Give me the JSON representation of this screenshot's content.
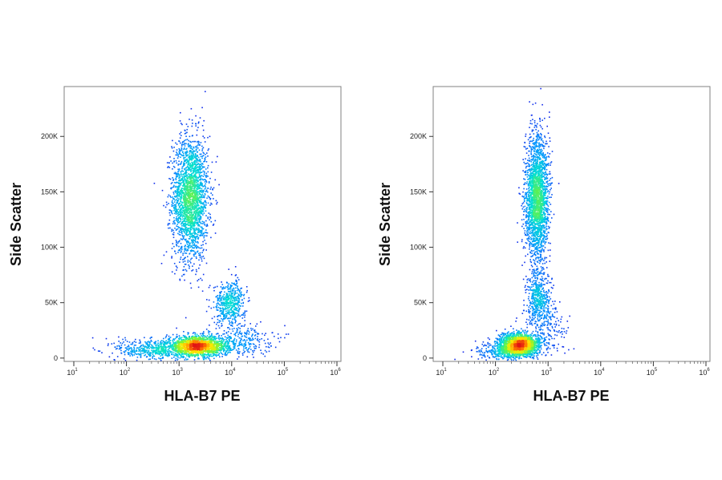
{
  "chart_data": [
    {
      "type": "scatter",
      "style": "density dot plot (pseudocolor)",
      "xlabel": "HLA-B7 PE",
      "ylabel": "Side Scatter",
      "x_scale": "log",
      "xlim": [
        10,
        1000000
      ],
      "ylim": [
        -3000,
        245000
      ],
      "x_ticks": [
        {
          "base": "10",
          "exp": "1"
        },
        {
          "base": "10",
          "exp": "2"
        },
        {
          "base": "10",
          "exp": "3"
        },
        {
          "base": "10",
          "exp": "4"
        },
        {
          "base": "10",
          "exp": "5"
        },
        {
          "base": "10",
          "exp": "6"
        }
      ],
      "y_ticks": [
        {
          "value": 0,
          "label": "0"
        },
        {
          "value": 50000,
          "label": "50K"
        },
        {
          "value": 100000,
          "label": "100K"
        },
        {
          "value": 150000,
          "label": "150K"
        },
        {
          "value": 200000,
          "label": "200K"
        }
      ],
      "populations": [
        {
          "x_center": 1600,
          "y_center": 145000,
          "x_spread_decades": 0.17,
          "y_spread": 28000,
          "count": 2300
        },
        {
          "x_center": 2200,
          "y_center": 11000,
          "x_spread_decades": 0.3,
          "y_spread": 4500,
          "count": 1800
        },
        {
          "x_center": 9000,
          "y_center": 50000,
          "x_spread_decades": 0.15,
          "y_spread": 10000,
          "count": 520
        },
        {
          "x_center": 300,
          "y_center": 8000,
          "x_spread_decades": 0.35,
          "y_spread": 5000,
          "count": 450
        },
        {
          "x_center": 15000,
          "y_center": 17000,
          "x_spread_decades": 0.3,
          "y_spread": 7000,
          "count": 260
        }
      ]
    },
    {
      "type": "scatter",
      "style": "density dot plot (pseudocolor)",
      "xlabel": "HLA-B7 PE",
      "ylabel": "Side Scatter",
      "x_scale": "log",
      "xlim": [
        10,
        1000000
      ],
      "ylim": [
        -3000,
        245000
      ],
      "x_ticks": [
        {
          "base": "10",
          "exp": "1"
        },
        {
          "base": "10",
          "exp": "2"
        },
        {
          "base": "10",
          "exp": "3"
        },
        {
          "base": "10",
          "exp": "4"
        },
        {
          "base": "10",
          "exp": "5"
        },
        {
          "base": "10",
          "exp": "6"
        }
      ],
      "y_ticks": [
        {
          "value": 0,
          "label": "0"
        },
        {
          "value": 50000,
          "label": "50K"
        },
        {
          "value": 100000,
          "label": "100K"
        },
        {
          "value": 150000,
          "label": "150K"
        },
        {
          "value": 200000,
          "label": "200K"
        }
      ],
      "populations": [
        {
          "x_center": 600,
          "y_center": 145000,
          "x_spread_decades": 0.11,
          "y_spread": 28000,
          "count": 2300
        },
        {
          "x_center": 280,
          "y_center": 13000,
          "x_spread_decades": 0.2,
          "y_spread": 5000,
          "count": 1800
        },
        {
          "x_center": 650,
          "y_center": 55000,
          "x_spread_decades": 0.11,
          "y_spread": 13000,
          "count": 480
        },
        {
          "x_center": 150,
          "y_center": 6000,
          "x_spread_decades": 0.25,
          "y_spread": 4000,
          "count": 400
        },
        {
          "x_center": 1000,
          "y_center": 30000,
          "x_spread_decades": 0.25,
          "y_spread": 12000,
          "count": 180
        }
      ]
    }
  ]
}
